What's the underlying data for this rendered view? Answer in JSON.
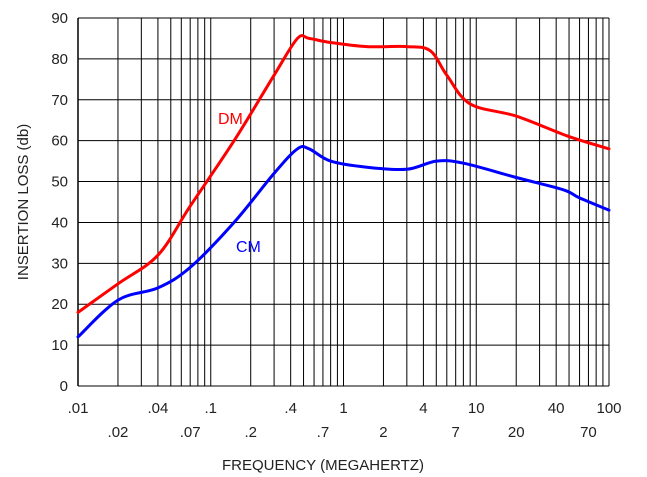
{
  "chart_data": {
    "type": "line",
    "title": "",
    "xlabel": "FREQUENCY (MEGAHERTZ)",
    "ylabel": "INSERTION LOSS (db)",
    "x_scale": "log",
    "xlim": [
      0.01,
      100
    ],
    "ylim": [
      0,
      90
    ],
    "grid": true,
    "legend": "none",
    "x_ticks_upper": [
      ".01",
      ".04",
      ".1",
      ".4",
      "1",
      "4",
      "10",
      "40",
      "100"
    ],
    "x_ticks_lower": [
      ".02",
      ".07",
      ".2",
      ".7",
      "2",
      "7",
      "20",
      "70"
    ],
    "y_ticks": [
      "0",
      "10",
      "20",
      "30",
      "40",
      "50",
      "60",
      "70",
      "80",
      "90"
    ],
    "series": [
      {
        "name": "DM",
        "color": "#ff0000",
        "x": [
          0.01,
          0.02,
          0.04,
          0.07,
          0.15,
          0.3,
          0.45,
          0.55,
          0.8,
          1.5,
          3,
          4.5,
          6,
          9,
          20,
          50,
          100
        ],
        "y": [
          18,
          25,
          32,
          44,
          60,
          76,
          85,
          85,
          84,
          83,
          83,
          82,
          76,
          69,
          66,
          61,
          58
        ]
      },
      {
        "name": "CM",
        "color": "#0000ff",
        "x": [
          0.01,
          0.02,
          0.04,
          0.07,
          0.15,
          0.3,
          0.45,
          0.55,
          0.8,
          1.5,
          3,
          5,
          8,
          20,
          45,
          60,
          100
        ],
        "y": [
          12,
          21,
          24,
          29,
          40,
          52,
          58,
          58,
          55,
          53.5,
          53,
          55,
          54.5,
          51,
          48,
          46,
          43
        ]
      }
    ]
  }
}
